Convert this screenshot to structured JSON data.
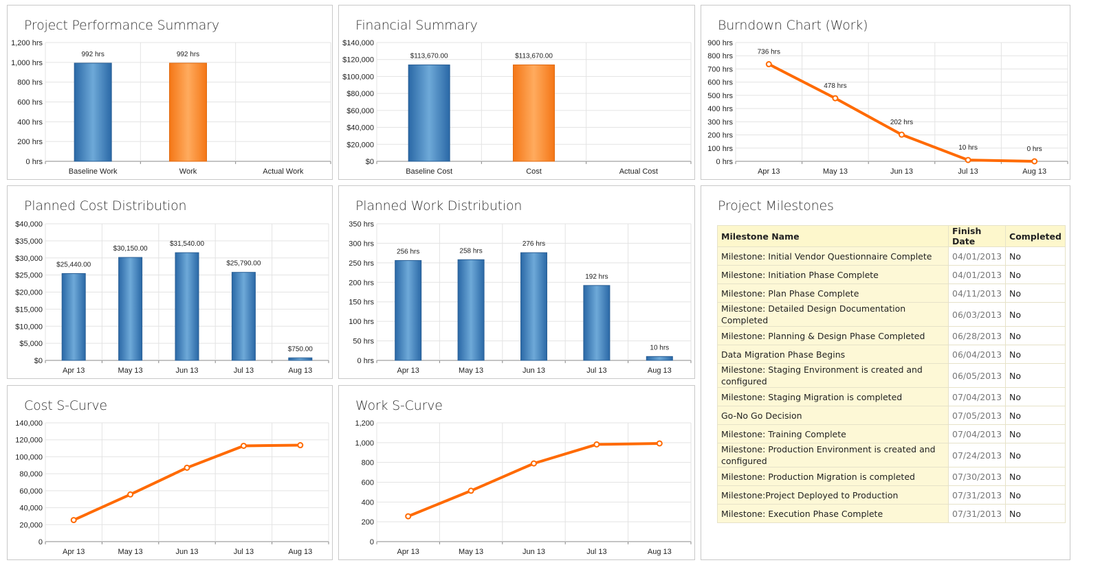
{
  "colors": {
    "blue": "#3b7fbf",
    "orange": "#f7882f",
    "line": "#ff6a00",
    "grid": "#e3e3e3"
  },
  "chart_data": [
    {
      "id": "pps",
      "type": "bar",
      "title": "Project Performance Summary",
      "categories": [
        "Baseline Work",
        "Work",
        "Actual Work"
      ],
      "values": [
        992,
        992,
        null
      ],
      "data_labels": [
        "992 hrs",
        "992 hrs",
        ""
      ],
      "bar_colors": [
        "blue",
        "orange",
        "blue"
      ],
      "ylim": [
        0,
        1200
      ],
      "yticks": [
        0,
        200,
        400,
        600,
        800,
        1000,
        1200
      ],
      "ytick_labels": [
        "0 hrs",
        "200 hrs",
        "400 hrs",
        "600 hrs",
        "800 hrs",
        "1,000 hrs",
        "1,200 hrs"
      ],
      "grid": true
    },
    {
      "id": "fin",
      "type": "bar",
      "title": "Financial Summary",
      "categories": [
        "Baseline Cost",
        "Cost",
        "Actual Cost"
      ],
      "values": [
        113670,
        113670,
        null
      ],
      "data_labels": [
        "$113,670.00",
        "$113,670.00",
        ""
      ],
      "bar_colors": [
        "blue",
        "orange",
        "blue"
      ],
      "ylim": [
        0,
        140000
      ],
      "yticks": [
        0,
        20000,
        40000,
        60000,
        80000,
        100000,
        120000,
        140000
      ],
      "ytick_labels": [
        "$0",
        "$20,000",
        "$40,000",
        "$60,000",
        "$80,000",
        "$100,000",
        "$120,000",
        "$140,000"
      ],
      "grid": true
    },
    {
      "id": "burn",
      "type": "line",
      "title": "Burndown Chart (Work)",
      "categories": [
        "Apr 13",
        "May 13",
        "Jun 13",
        "Jul 13",
        "Aug 13"
      ],
      "values": [
        736,
        478,
        202,
        10,
        0
      ],
      "data_labels": [
        "736 hrs",
        "478 hrs",
        "202 hrs",
        "10 hrs",
        "0 hrs"
      ],
      "ylim": [
        0,
        900
      ],
      "yticks": [
        0,
        100,
        200,
        300,
        400,
        500,
        600,
        700,
        800,
        900
      ],
      "ytick_labels": [
        "0 hrs",
        "100 hrs",
        "200 hrs",
        "300 hrs",
        "400 hrs",
        "500 hrs",
        "600 hrs",
        "700 hrs",
        "800 hrs",
        "900 hrs"
      ],
      "grid": true
    },
    {
      "id": "pcd",
      "type": "bar",
      "title": "Planned Cost Distribution",
      "categories": [
        "Apr 13",
        "May 13",
        "Jun 13",
        "Jul 13",
        "Aug 13"
      ],
      "values": [
        25440,
        30150,
        31540,
        25790,
        750
      ],
      "data_labels": [
        "$25,440.00",
        "$30,150.00",
        "$31,540.00",
        "$25,790.00",
        "$750.00"
      ],
      "bar_colors": [
        "blue",
        "blue",
        "blue",
        "blue",
        "blue"
      ],
      "ylim": [
        0,
        40000
      ],
      "yticks": [
        0,
        5000,
        10000,
        15000,
        20000,
        25000,
        30000,
        35000,
        40000
      ],
      "ytick_labels": [
        "$0",
        "$5,000",
        "$10,000",
        "$15,000",
        "$20,000",
        "$25,000",
        "$30,000",
        "$35,000",
        "$40,000"
      ],
      "grid": true
    },
    {
      "id": "pwd",
      "type": "bar",
      "title": "Planned Work Distribution",
      "categories": [
        "Apr 13",
        "May 13",
        "Jun 13",
        "Jul 13",
        "Aug 13"
      ],
      "values": [
        256,
        258,
        276,
        192,
        10
      ],
      "data_labels": [
        "256 hrs",
        "258 hrs",
        "276 hrs",
        "192 hrs",
        "10 hrs"
      ],
      "bar_colors": [
        "blue",
        "blue",
        "blue",
        "blue",
        "blue"
      ],
      "ylim": [
        0,
        350
      ],
      "yticks": [
        0,
        50,
        100,
        150,
        200,
        250,
        300,
        350
      ],
      "ytick_labels": [
        "0 hrs",
        "50 hrs",
        "100 hrs",
        "150 hrs",
        "200 hrs",
        "250 hrs",
        "300 hrs",
        "350 hrs"
      ],
      "grid": true
    },
    {
      "id": "csc",
      "type": "line",
      "title": "Cost S-Curve",
      "categories": [
        "Apr 13",
        "May 13",
        "Jun 13",
        "Jul 13",
        "Aug 13"
      ],
      "values": [
        25440,
        55590,
        87130,
        112920,
        113670
      ],
      "data_labels": [
        "",
        "",
        "",
        "",
        ""
      ],
      "ylim": [
        0,
        140000
      ],
      "yticks": [
        0,
        20000,
        40000,
        60000,
        80000,
        100000,
        120000,
        140000
      ],
      "ytick_labels": [
        "0",
        "20,000",
        "40,000",
        "60,000",
        "80,000",
        "100,000",
        "120,000",
        "140,000"
      ],
      "grid": true
    },
    {
      "id": "wsc",
      "type": "line",
      "title": "Work S-Curve",
      "categories": [
        "Apr 13",
        "May 13",
        "Jun 13",
        "Jul 13",
        "Aug 13"
      ],
      "values": [
        256,
        514,
        790,
        982,
        992
      ],
      "data_labels": [
        "",
        "",
        "",
        "",
        ""
      ],
      "ylim": [
        0,
        1200
      ],
      "yticks": [
        0,
        200,
        400,
        600,
        800,
        1000,
        1200
      ],
      "ytick_labels": [
        "0",
        "200",
        "400",
        "600",
        "800",
        "1,000",
        "1,200"
      ],
      "grid": true
    }
  ],
  "milestones": {
    "title": "Project Milestones",
    "headers": [
      "Milestone Name",
      "Finish Date",
      "Completed"
    ],
    "rows": [
      [
        "Milestone: Initial Vendor Questionnaire Complete",
        "04/01/2013",
        "No"
      ],
      [
        "Milestone: Initiation Phase Complete",
        "04/01/2013",
        "No"
      ],
      [
        "Milestone: Plan Phase Complete",
        "04/11/2013",
        "No"
      ],
      [
        "Milestone: Detailed Design Documentation Completed",
        "06/03/2013",
        "No"
      ],
      [
        "Milestone: Planning & Design Phase Completed",
        "06/28/2013",
        "No"
      ],
      [
        "Data Migration Phase Begins",
        "06/04/2013",
        "No"
      ],
      [
        "Milestone: Staging Environment is created and configured",
        "06/05/2013",
        "No"
      ],
      [
        "Milestone: Staging Migration is completed",
        "07/04/2013",
        "No"
      ],
      [
        "Go-No Go Decision",
        "07/05/2013",
        "No"
      ],
      [
        "Milestone: Training Complete",
        "07/04/2013",
        "No"
      ],
      [
        "Milestone: Production Environment is created and configured",
        "07/24/2013",
        "No"
      ],
      [
        "Milestone: Production Migration is completed",
        "07/30/2013",
        "No"
      ],
      [
        "Milestone:Project Deployed to Production",
        "07/31/2013",
        "No"
      ],
      [
        "Milestone: Execution Phase Complete",
        "07/31/2013",
        "No"
      ]
    ]
  }
}
